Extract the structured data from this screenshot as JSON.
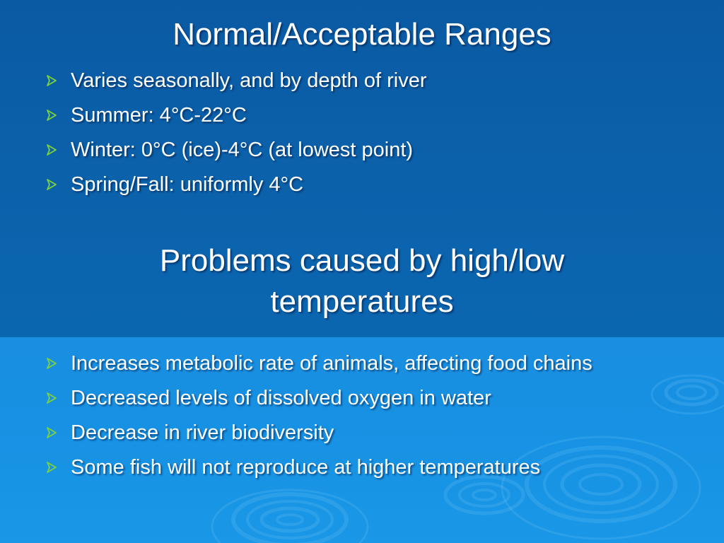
{
  "slide": {
    "colors": {
      "top_band": "#0b62ab",
      "bottom_band": "#1791e3",
      "bullet": "#7cd23c",
      "text": "#ffffff"
    },
    "section1": {
      "title": "Normal/Acceptable Ranges",
      "bullet_icon": "arrow-bullet-icon",
      "bullets": [
        "Varies seasonally, and by depth of river",
        "Summer: 4°C-22°C",
        "Winter: 0°C (ice)-4°C (at lowest point)",
        "Spring/Fall: uniformly 4°C"
      ]
    },
    "section2": {
      "title_line1": "Problems caused by high/low",
      "title_line2": "temperatures",
      "bullet_icon": "arrow-bullet-icon",
      "bullets": [
        "Increases metabolic rate of animals, affecting food chains",
        "Decreased levels of dissolved oxygen in water",
        "Decrease in river biodiversity",
        "Some fish will not reproduce at higher temperatures"
      ]
    }
  }
}
